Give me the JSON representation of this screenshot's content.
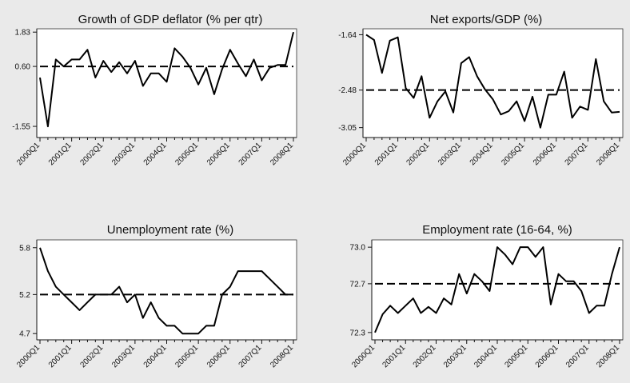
{
  "x_labels": [
    "2000Q1",
    "2001Q1",
    "2002Q1",
    "2003Q1",
    "2004Q1",
    "2005Q1",
    "2006Q1",
    "2007Q1",
    "2008Q1"
  ],
  "chart_data": [
    {
      "type": "line",
      "title": "Growth of GDP deflator (% per qtr)",
      "xlabel": "",
      "ylabel": "",
      "yticks": [
        "1.83",
        "0.60",
        "-1.55"
      ],
      "ylim": [
        -1.95,
        1.95
      ],
      "mean": 0.6,
      "series": [
        {
          "color": "#000000",
          "values": [
            0.2,
            -1.55,
            0.85,
            0.6,
            0.85,
            0.85,
            1.2,
            0.2,
            0.8,
            0.4,
            0.75,
            0.35,
            0.8,
            -0.1,
            0.35,
            0.35,
            0.05,
            1.25,
            0.95,
            0.55,
            -0.05,
            0.55,
            -0.4,
            0.5,
            1.2,
            0.7,
            0.25,
            0.85,
            0.1,
            0.55,
            0.65,
            0.65,
            1.83
          ]
        }
      ]
    },
    {
      "type": "line",
      "title": "Net exports/GDP (%)",
      "xlabel": "",
      "ylabel": "",
      "yticks": [
        "-1.64",
        "-2.48",
        "-3.05"
      ],
      "ylim": [
        -3.2,
        -1.55
      ],
      "mean": -2.48,
      "series": [
        {
          "color": "#000000",
          "values": [
            -1.64,
            -1.72,
            -2.22,
            -1.73,
            -1.68,
            -2.45,
            -2.6,
            -2.27,
            -2.9,
            -2.65,
            -2.5,
            -2.82,
            -2.07,
            -1.98,
            -2.27,
            -2.47,
            -2.62,
            -2.85,
            -2.8,
            -2.65,
            -2.95,
            -2.58,
            -3.05,
            -2.55,
            -2.55,
            -2.2,
            -2.9,
            -2.73,
            -2.78,
            -2.01,
            -2.65,
            -2.82,
            -2.81
          ]
        }
      ]
    },
    {
      "type": "line",
      "title": "Unemployment rate (%)",
      "xlabel": "",
      "ylabel": "",
      "yticks": [
        "5.8",
        "5.2",
        "4.7"
      ],
      "ylim": [
        4.62,
        5.9
      ],
      "mean": 5.2,
      "series": [
        {
          "color": "#000000",
          "values": [
            5.8,
            5.5,
            5.3,
            5.2,
            5.1,
            5.0,
            5.1,
            5.2,
            5.2,
            5.2,
            5.3,
            5.1,
            5.2,
            4.9,
            5.1,
            4.9,
            4.8,
            4.8,
            4.7,
            4.7,
            4.7,
            4.8,
            4.8,
            5.2,
            5.3,
            5.5,
            5.5,
            5.5,
            5.5,
            5.4,
            5.3,
            5.2,
            5.2
          ]
        }
      ]
    },
    {
      "type": "line",
      "title": "Employment rate (16-64, %)",
      "xlabel": "",
      "ylabel": "",
      "yticks": [
        "73.0",
        "72.7",
        "72.3"
      ],
      "ylim": [
        72.24,
        73.06
      ],
      "mean": 72.7,
      "series": [
        {
          "color": "#000000",
          "values": [
            72.3,
            72.45,
            72.52,
            72.46,
            72.52,
            72.58,
            72.46,
            72.51,
            72.46,
            72.58,
            72.53,
            72.78,
            72.62,
            72.78,
            72.72,
            72.64,
            73.0,
            72.94,
            72.86,
            73.0,
            73.0,
            72.92,
            73.0,
            72.53,
            72.78,
            72.72,
            72.72,
            72.64,
            72.46,
            72.52,
            72.52,
            72.78,
            73.0
          ]
        }
      ]
    }
  ]
}
